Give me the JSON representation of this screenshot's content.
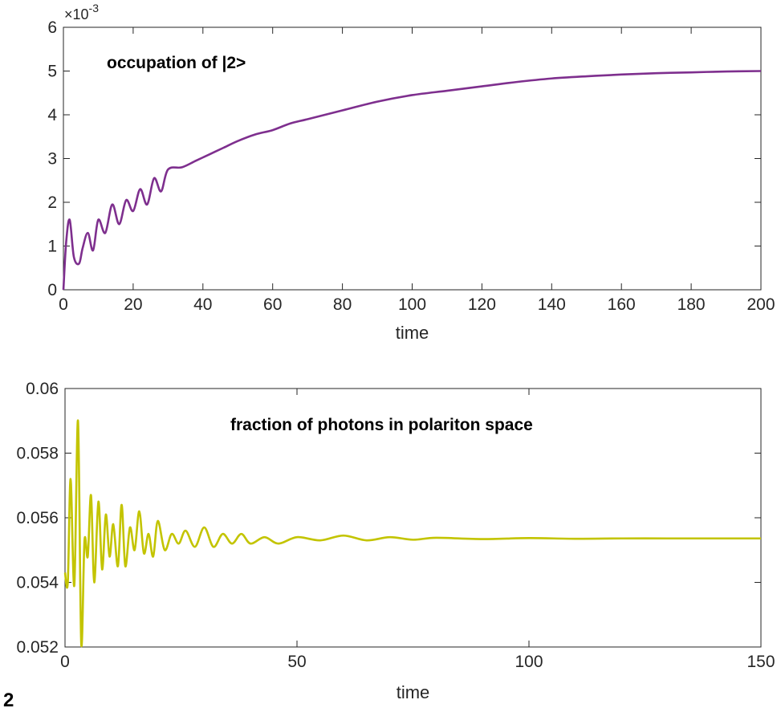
{
  "chart_data": [
    {
      "type": "line",
      "annotation": "occupation of |2>",
      "xlabel": "time",
      "ylabel": "",
      "xlim": [
        0,
        200
      ],
      "ylim": [
        0,
        6
      ],
      "y_scale_factor_label": "×10",
      "y_scale_exponent": "-3",
      "xticks": [
        "0",
        "20",
        "40",
        "60",
        "80",
        "100",
        "120",
        "140",
        "160",
        "180",
        "200"
      ],
      "yticks": [
        "0",
        "1",
        "2",
        "3",
        "4",
        "5",
        "6"
      ],
      "grid": false,
      "color": "#7e2f8e",
      "series": [
        {
          "x": [
            0,
            0.8,
            1.8,
            3,
            4.5,
            5.5,
            7,
            8.5,
            10,
            12,
            14,
            16,
            18,
            20,
            22,
            24,
            26,
            28,
            30,
            34,
            38,
            42,
            46,
            50,
            55,
            60,
            65,
            70,
            80,
            90,
            100,
            110,
            120,
            130,
            140,
            150,
            160,
            170,
            180,
            190,
            200
          ],
          "y": [
            0.0,
            1.1,
            1.6,
            0.75,
            0.6,
            0.95,
            1.3,
            0.9,
            1.6,
            1.3,
            1.95,
            1.5,
            2.05,
            1.8,
            2.3,
            1.95,
            2.55,
            2.25,
            2.75,
            2.8,
            2.95,
            3.1,
            3.25,
            3.4,
            3.55,
            3.65,
            3.8,
            3.9,
            4.1,
            4.3,
            4.45,
            4.55,
            4.65,
            4.75,
            4.83,
            4.88,
            4.92,
            4.95,
            4.97,
            4.99,
            5.0
          ]
        }
      ]
    },
    {
      "type": "line",
      "annotation": "fraction of photons in polariton space",
      "xlabel": "time",
      "ylabel": "",
      "xlim": [
        0,
        150
      ],
      "ylim": [
        0.052,
        0.06
      ],
      "xticks": [
        "0",
        "50",
        "100",
        "150"
      ],
      "yticks": [
        "0.052",
        "0.054",
        "0.056",
        "0.058",
        "0.06"
      ],
      "grid": false,
      "color": "#c3c400",
      "series": [
        {
          "x": [
            0,
            0.6,
            1.2,
            2,
            2.8,
            3.5,
            4.2,
            4.9,
            5.6,
            6.3,
            7.2,
            8,
            8.8,
            9.6,
            10.4,
            11.4,
            12.2,
            13,
            14,
            15,
            16,
            17,
            18,
            19,
            20,
            21.5,
            23,
            24.5,
            26,
            28,
            30,
            32,
            34,
            36,
            38,
            40,
            43,
            46,
            50,
            55,
            60,
            65,
            70,
            75,
            80,
            90,
            100,
            110,
            120,
            130,
            140,
            150
          ],
          "y": [
            0.0543,
            0.054,
            0.0572,
            0.0539,
            0.059,
            0.0521,
            0.0553,
            0.0548,
            0.0567,
            0.054,
            0.0565,
            0.0544,
            0.0561,
            0.0548,
            0.0558,
            0.0545,
            0.0564,
            0.0545,
            0.0557,
            0.055,
            0.0562,
            0.0549,
            0.0555,
            0.0548,
            0.0559,
            0.055,
            0.0555,
            0.0552,
            0.0556,
            0.0551,
            0.0557,
            0.0551,
            0.0555,
            0.0552,
            0.0555,
            0.0552,
            0.0554,
            0.0552,
            0.0554,
            0.0553,
            0.05545,
            0.0553,
            0.0554,
            0.05532,
            0.05538,
            0.05534,
            0.05537,
            0.05535,
            0.05536,
            0.05536,
            0.05536,
            0.05536
          ]
        }
      ]
    }
  ],
  "panel_tag": "2"
}
